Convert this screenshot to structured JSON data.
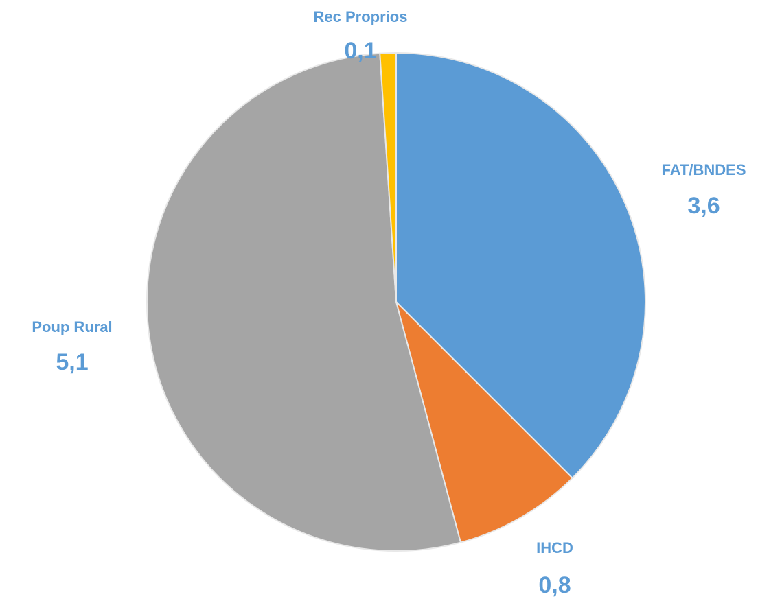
{
  "chart_data": {
    "type": "pie",
    "categories": [
      "FAT/BNDES",
      "IHCD",
      "Poup Rural",
      "Rec Proprios"
    ],
    "values": [
      3.6,
      0.8,
      5.1,
      0.1
    ],
    "value_labels": [
      "3,6",
      "0,8",
      "5,1",
      "0,1"
    ],
    "colors": [
      "#5b9bd5",
      "#ed7d31",
      "#a5a5a5",
      "#ffc000"
    ],
    "label_color": "#5b9bd5"
  }
}
